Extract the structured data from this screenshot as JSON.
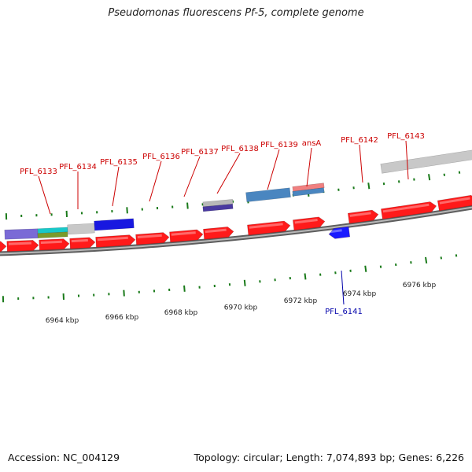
{
  "title": "Pseudomonas fluorescens Pf-5, complete genome",
  "footer": {
    "accession": "Accession: NC_004129",
    "summary": "Topology: circular; Length: 7,074,893 bp; Genes: 6,226"
  },
  "colors": {
    "gene": "#ff1a1a",
    "gene_label": "#cc0000",
    "reverse_gene": "#1a1aff",
    "reverse_label": "#0000aa",
    "tick": "#1a7a1a",
    "backbone": "#888888"
  },
  "axis": {
    "unit": "kbp",
    "labels": [
      {
        "kbp": 6964,
        "text": "6964 kbp"
      },
      {
        "kbp": 6966,
        "text": "6966 kbp"
      },
      {
        "kbp": 6968,
        "text": "6968 kbp"
      },
      {
        "kbp": 6970,
        "text": "6970 kbp"
      },
      {
        "kbp": 6972,
        "text": "6972 kbp"
      },
      {
        "kbp": 6974,
        "text": "6974 kbp"
      },
      {
        "kbp": 6976,
        "text": "6976 kbp"
      }
    ]
  },
  "gene_labels": [
    {
      "text": "PFL_6133",
      "strand": "forward"
    },
    {
      "text": "PFL_6134",
      "strand": "forward"
    },
    {
      "text": "PFL_6135",
      "strand": "forward"
    },
    {
      "text": "PFL_6136",
      "strand": "forward"
    },
    {
      "text": "PFL_6137",
      "strand": "forward"
    },
    {
      "text": "PFL_6138",
      "strand": "forward"
    },
    {
      "text": "PFL_6139",
      "strand": "forward"
    },
    {
      "text": "ansA",
      "strand": "forward"
    },
    {
      "text": "PFL_6142",
      "strand": "forward"
    },
    {
      "text": "PFL_6143",
      "strand": "forward"
    },
    {
      "text": "PFL_6141",
      "strand": "reverse"
    }
  ]
}
